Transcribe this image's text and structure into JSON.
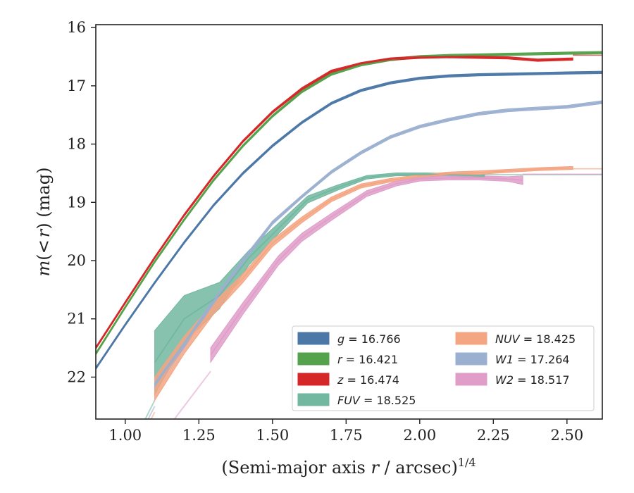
{
  "chart_data": {
    "type": "line",
    "xlabel": "(Semi-major axis r / arcsec)",
    "xlabel_parts": {
      "pre": "(Semi-major axis ",
      "var": "r",
      "post": " / arcsec)",
      "sup": "1/4"
    },
    "ylabel": "m(< r) (mag)",
    "ylabel_parts": {
      "func": "m",
      "paren_open": "(",
      "sym": "<",
      "var": "r",
      "paren_close": ")",
      "unit": " (mag)"
    },
    "xlim": [
      0.9,
      2.62
    ],
    "ylim": [
      22.72,
      15.95
    ],
    "y_inverted": true,
    "x_ticks": [
      1.0,
      1.25,
      1.5,
      1.75,
      2.0,
      2.25,
      2.5
    ],
    "x_tick_labels": [
      "1.00",
      "1.25",
      "1.50",
      "1.75",
      "2.00",
      "2.25",
      "2.50"
    ],
    "y_ticks": [
      16,
      17,
      18,
      19,
      20,
      21,
      22
    ],
    "y_tick_labels": [
      "16",
      "17",
      "18",
      "19",
      "20",
      "21",
      "22"
    ],
    "grid": false,
    "legend_position": "lower-right",
    "legend_columns": 2,
    "series": [
      {
        "name": "g = 16.766",
        "label_var": "g",
        "label_value": "= 16.766",
        "color": "#4c78a8",
        "band_width": 0.04,
        "asymptote": 16.766,
        "x": [
          0.9,
          1.0,
          1.1,
          1.2,
          1.3,
          1.4,
          1.5,
          1.6,
          1.7,
          1.8,
          1.9,
          2.0,
          2.1,
          2.2,
          2.3,
          2.4,
          2.5,
          2.62
        ],
        "y": [
          21.85,
          21.1,
          20.38,
          19.69,
          19.05,
          18.5,
          18.03,
          17.63,
          17.3,
          17.08,
          16.95,
          16.87,
          16.83,
          16.81,
          16.8,
          16.79,
          16.78,
          16.77
        ]
      },
      {
        "name": "r = 16.421",
        "label_var": "r",
        "label_value": "= 16.421",
        "color": "#54a24b",
        "band_width": 0.04,
        "asymptote": 16.421,
        "x": [
          0.9,
          1.0,
          1.1,
          1.2,
          1.3,
          1.4,
          1.5,
          1.6,
          1.7,
          1.8,
          1.9,
          2.0,
          2.1,
          2.2,
          2.3,
          2.4,
          2.5,
          2.62
        ],
        "y": [
          21.6,
          20.8,
          20.02,
          19.3,
          18.62,
          18.03,
          17.52,
          17.1,
          16.8,
          16.64,
          16.55,
          16.5,
          16.48,
          16.47,
          16.46,
          16.45,
          16.44,
          16.43
        ]
      },
      {
        "name": "z = 16.474",
        "label_var": "z",
        "label_value": "= 16.474",
        "color": "#d62728",
        "band_width": 0.04,
        "asymptote": 16.474,
        "x": [
          0.9,
          1.0,
          1.1,
          1.2,
          1.3,
          1.4,
          1.5,
          1.6,
          1.7,
          1.8,
          1.9,
          2.0,
          2.1,
          2.2,
          2.3,
          2.4,
          2.52
        ],
        "y": [
          21.5,
          20.72,
          19.95,
          19.22,
          18.55,
          17.95,
          17.45,
          17.05,
          16.75,
          16.62,
          16.54,
          16.51,
          16.5,
          16.51,
          16.52,
          16.56,
          16.54
        ]
      },
      {
        "name": "FUV = 18.525",
        "label_var": "FUV",
        "label_value": "= 18.525",
        "color": "#72b7a0",
        "asymptote": 18.525,
        "x": [
          1.1,
          1.2,
          1.32,
          1.42,
          1.52,
          1.62,
          1.72,
          1.82,
          1.92,
          2.02,
          2.12,
          2.22
        ],
        "y": [
          21.75,
          21.0,
          20.6,
          19.95,
          19.45,
          18.95,
          18.75,
          18.57,
          18.52,
          18.52,
          18.53,
          18.55
        ],
        "band_width": [
          1.1,
          0.8,
          0.45,
          0.25,
          0.18,
          0.12,
          0.09,
          0.06,
          0.05,
          0.05,
          0.05,
          0.05
        ]
      },
      {
        "name": "NUV = 18.425",
        "label_var": "NUV",
        "label_value": "= 18.425",
        "color": "#f4a582",
        "asymptote": 18.425,
        "x": [
          1.1,
          1.2,
          1.3,
          1.4,
          1.5,
          1.6,
          1.7,
          1.8,
          1.9,
          2.0,
          2.1,
          2.2,
          2.3,
          2.4,
          2.52
        ],
        "y": [
          22.2,
          21.45,
          20.82,
          20.3,
          19.7,
          19.3,
          18.95,
          18.72,
          18.62,
          18.56,
          18.51,
          18.49,
          18.46,
          18.43,
          18.41
        ],
        "band_width": [
          0.4,
          0.3,
          0.2,
          0.15,
          0.12,
          0.1,
          0.08,
          0.07,
          0.06,
          0.06,
          0.06,
          0.06,
          0.05,
          0.05,
          0.05
        ]
      },
      {
        "name": "W1 = 17.264",
        "label_var": "W1",
        "label_value": "= 17.264",
        "color": "#9bb0d0",
        "asymptote": 17.264,
        "x": [
          1.1,
          1.2,
          1.3,
          1.4,
          1.5,
          1.6,
          1.7,
          1.8,
          1.9,
          2.0,
          2.1,
          2.2,
          2.3,
          2.4,
          2.5,
          2.62
        ],
        "y": [
          22.15,
          21.45,
          20.7,
          20.0,
          19.35,
          18.9,
          18.48,
          18.15,
          17.88,
          17.7,
          17.58,
          17.48,
          17.42,
          17.39,
          17.36,
          17.28
        ],
        "band_width": [
          0.1,
          0.09,
          0.08,
          0.07,
          0.06,
          0.05,
          0.05,
          0.05,
          0.05,
          0.05,
          0.05,
          0.05,
          0.05,
          0.05,
          0.05,
          0.05
        ]
      },
      {
        "name": "W2 = 18.517",
        "label_var": "W2",
        "label_value": "= 18.517",
        "color": "#df9dc8",
        "asymptote": 18.517,
        "x": [
          1.29,
          1.4,
          1.52,
          1.6,
          1.7,
          1.82,
          1.92,
          2.0,
          2.1,
          2.2,
          2.3,
          2.35
        ],
        "y": [
          21.62,
          20.82,
          20.0,
          19.6,
          19.25,
          18.85,
          18.68,
          18.6,
          18.58,
          18.58,
          18.6,
          18.62
        ],
        "band_width": [
          0.25,
          0.2,
          0.16,
          0.14,
          0.12,
          0.1,
          0.08,
          0.07,
          0.07,
          0.07,
          0.08,
          0.15
        ]
      }
    ],
    "faint_tails": [
      {
        "color": "#72b7a0",
        "x": [
          0.98,
          1.1
        ],
        "y": [
          23.6,
          22.4
        ]
      },
      {
        "color": "#9bb0d0",
        "x": [
          1.04,
          1.1
        ],
        "y": [
          23.1,
          22.5
        ]
      },
      {
        "color": "#f4a582",
        "x": [
          1.06,
          1.1
        ],
        "y": [
          23.0,
          22.6
        ]
      },
      {
        "color": "#df9dc8",
        "x": [
          1.05,
          1.29
        ],
        "y": [
          23.5,
          21.9
        ]
      }
    ]
  }
}
